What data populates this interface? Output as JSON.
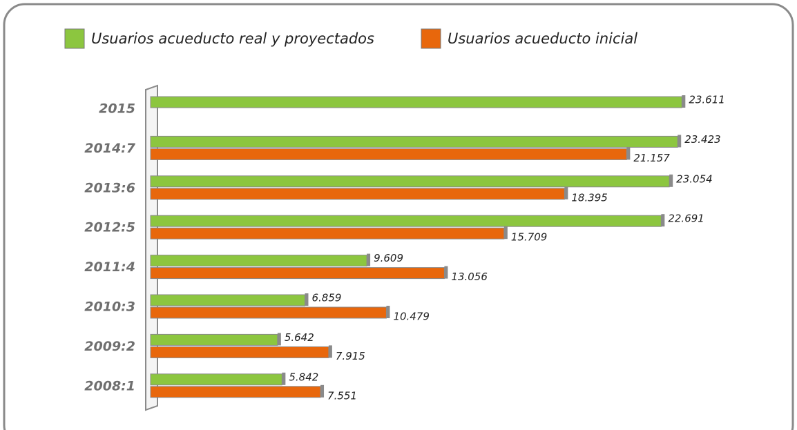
{
  "chart_data": {
    "type": "bar",
    "orientation": "horizontal",
    "categories": [
      "2015",
      "2014:7",
      "2013:6",
      "2012:5",
      "2011:4",
      "2010:3",
      "2009:2",
      "2008:1"
    ],
    "series": [
      {
        "name": "Usuarios acueducto real y proyectados",
        "color": "#8cc63f",
        "values": [
          23611,
          23423,
          23054,
          22691,
          9609,
          6859,
          5642,
          5842
        ],
        "value_labels": [
          "23.611",
          "23.423",
          "23.054",
          "22.691",
          "9.609",
          "6.859",
          "5.642",
          "5.842"
        ]
      },
      {
        "name": "Usuarios acueducto inicial",
        "color": "#e8670c",
        "values": [
          null,
          21157,
          18395,
          15709,
          13056,
          10479,
          7915,
          7551
        ],
        "value_labels": [
          null,
          "21.157",
          "18.395",
          "15.709",
          "13.056",
          "10.479",
          "7.915",
          "7.551"
        ]
      }
    ],
    "xlim": [
      0,
      24000
    ],
    "legend": "top"
  }
}
